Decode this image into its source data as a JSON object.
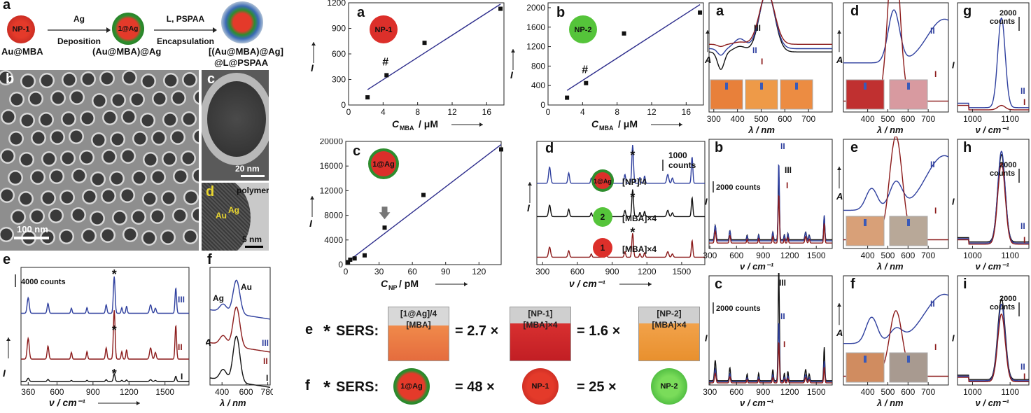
{
  "scheme": {
    "panel_label": "a",
    "np1_label": "NP-1",
    "ag_label": "1@Ag",
    "step1_top": "Ag",
    "step1_bottom": "Deposition",
    "step2_top": "L, PSPAA",
    "step2_bottom": "Encapsulation",
    "name1": "Au@MBA",
    "name2": "(Au@MBA)@Ag",
    "name3_line1": "[(Au@MBA)@Ag]",
    "name3_line2": "@L@PSPAA"
  },
  "tem": {
    "b_label": "b",
    "b_scale": "100 nm",
    "c_label": "c",
    "c_scale": "20 nm",
    "d_label": "d",
    "d_scale": "5 nm",
    "d_polymer": "polymer",
    "d_au": "Au",
    "d_ag": "Ag"
  },
  "left_spectra": {
    "e_label": "e",
    "e_scale": "4000 counts",
    "e_xlabel": "ν / cm⁻¹",
    "e_ylabel": "I",
    "e_ticks": [
      "360",
      "600",
      "900",
      "1200",
      "1500"
    ],
    "f_label": "f",
    "f_xlabel": "λ / nm",
    "f_ylabel": "A",
    "f_ticks": [
      "400",
      "600",
      "780"
    ],
    "f_au": "Au",
    "f_ag": "Ag",
    "roman": [
      "III",
      "II",
      "I"
    ]
  },
  "mid_top": {
    "a_label": "a",
    "a_badge": "NP-1",
    "a_xlabel": "C",
    "a_xsub": "MBA",
    "a_xunit": " / μM",
    "a_ylabel": "I",
    "a_yticks": [
      "0",
      "300",
      "600",
      "900",
      "1200"
    ],
    "a_xticks": [
      "0",
      "4",
      "8",
      "12",
      "16"
    ],
    "a_hash": "#",
    "b_label": "b",
    "b_badge": "NP-2",
    "b_xlabel": "C",
    "b_xsub": "MBA",
    "b_xunit": " / μM",
    "b_ylabel": "I",
    "b_yticks": [
      "0",
      "400",
      "800",
      "1200",
      "1600",
      "2000"
    ],
    "b_xticks": [
      "0",
      "4",
      "8",
      "12",
      "16"
    ],
    "b_hash": "#"
  },
  "mid_bottom": {
    "c_label": "c",
    "c_badge": "1@Ag",
    "c_xlabel": "C",
    "c_xsub": "NP",
    "c_xunit": " / pM",
    "c_ylabel": "I",
    "c_yticks": [
      "0",
      "4000",
      "8000",
      "12000",
      "16000",
      "20000"
    ],
    "c_xticks": [
      "0",
      "30",
      "60",
      "90",
      "120"
    ],
    "d_label": "d",
    "d_scale": "1000",
    "d_scale2": "counts",
    "d_xlabel": "ν / cm⁻¹",
    "d_ylabel": "I",
    "d_xticks": [
      "300",
      "600",
      "900",
      "1200",
      "1500"
    ],
    "d_traces": [
      "[NP]/4",
      "[MBA]×4",
      "[MBA]×4"
    ],
    "d_badges": [
      "1@Ag",
      "2",
      "1"
    ]
  },
  "sers": {
    "e_label": "e",
    "e_prefix": "SERS:",
    "vial1_l1": "[1@Ag]/4",
    "vial1_l2": "[MBA]",
    "eq1": "= 2.7 ×",
    "vial2_l1": "[NP-1]",
    "vial2_l2": "[MBA]×4",
    "eq2": "= 1.6 ×",
    "vial3_l1": "[NP-2]",
    "vial3_l2": "[MBA]×4",
    "f_label": "f",
    "f_prefix": "SERS:",
    "f_b1": "1@Ag",
    "f_eq1": "= 48 ×",
    "f_b2": "NP-1",
    "f_eq2": "= 25 ×",
    "f_b3": "NP-2"
  },
  "right": {
    "a_label": "a",
    "a_ylabel": "A",
    "a_xlabel": "λ / nm",
    "a_ticks": [
      "300",
      "400",
      "500",
      "600",
      "700"
    ],
    "b_label": "b",
    "b_scale": "2000 counts",
    "b_ylabel": "I",
    "b_xlabel": "ν / cm⁻¹",
    "b_ticks": [
      "300",
      "600",
      "900",
      "1200",
      "1500"
    ],
    "c_label": "c",
    "c_scale": "2000 counts",
    "c_ylabel": "I",
    "c_xlabel": "ν / cm⁻¹",
    "c_ticks": [
      "300",
      "600",
      "900",
      "1200",
      "1500"
    ],
    "d_label": "d",
    "d_ylabel": "A",
    "d_xlabel": "λ / nm",
    "d_ticks": [
      "400",
      "500",
      "600",
      "700"
    ],
    "e_label": "e",
    "e_ylabel": "A",
    "e_xlabel": "λ / nm",
    "e_ticks": [
      "400",
      "500",
      "600",
      "700"
    ],
    "f_label": "f",
    "f_ylabel": "A",
    "f_xlabel": "λ / nm",
    "f_ticks": [
      "400",
      "500",
      "600",
      "700"
    ],
    "g_label": "g",
    "g_scale": "2000",
    "g_scale2": "counts",
    "g_ylabel": "I",
    "g_xlabel": "ν / cm⁻¹",
    "g_ticks": [
      "1000",
      "1100"
    ],
    "h_label": "h",
    "h_scale": "2000",
    "h_scale2": "counts",
    "h_ylabel": "I",
    "h_xlabel": "ν / cm⁻¹",
    "h_ticks": [
      "1000",
      "1100"
    ],
    "i_label": "i",
    "i_scale": "2000",
    "i_scale2": "counts",
    "i_ylabel": "I",
    "i_xlabel": "ν / cm⁻¹",
    "i_ticks": [
      "1000",
      "1100"
    ],
    "roman_I": "I",
    "roman_II": "II",
    "roman_III": "III"
  },
  "chart_data": [
    {
      "type": "scatter",
      "panel": "a (NP-1)",
      "x": [
        2.2,
        4.4,
        8.8,
        17.6
      ],
      "y": [
        90,
        350,
        730,
        1130
      ],
      "xlim": [
        0,
        18
      ],
      "ylim": [
        0,
        1200
      ],
      "xlabel": "C_MBA / μM",
      "ylabel": "I"
    },
    {
      "type": "scatter",
      "panel": "b (NP-2)",
      "x": [
        2.2,
        4.4,
        8.8,
        17.6
      ],
      "y": [
        150,
        450,
        1470,
        1900
      ],
      "xlim": [
        0,
        18
      ],
      "ylim": [
        0,
        2100
      ],
      "xlabel": "C_MBA / μM",
      "ylabel": "I"
    },
    {
      "type": "scatter",
      "panel": "c (1@Ag)",
      "x": [
        2,
        4,
        8,
        17,
        35,
        70,
        140
      ],
      "y": [
        400,
        800,
        1000,
        1500,
        6000,
        11300,
        18700
      ],
      "xlim": [
        0,
        140
      ],
      "ylim": [
        0,
        20000
      ],
      "xlabel": "C_NP / pM",
      "ylabel": "I"
    }
  ],
  "colors": {
    "blue": "#2e3f9e",
    "red": "#8b1a1a",
    "black": "#111111",
    "line": "#2d2d8c"
  }
}
